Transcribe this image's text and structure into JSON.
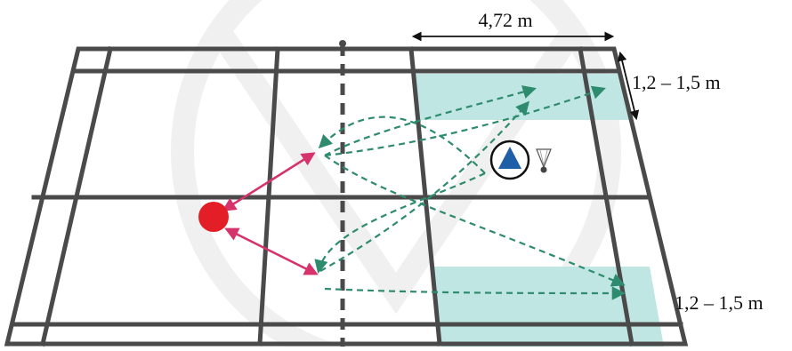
{
  "labels": {
    "zone_width": "4,72 m",
    "zone_depth_top": "1,2 – 1,5 m",
    "zone_depth_bottom": "1,2 – 1,5 m"
  },
  "colors": {
    "court_line": "#4a4a4a",
    "zone_fill": "#bfe6e3",
    "player_red": "#e41e26",
    "shot_arrow_pink": "#d6336c",
    "trajectory_green": "#2e8b6e",
    "player_blue": "#1f5fa8",
    "watermark": "#e2e2e2"
  },
  "icons": [
    "player-red-marker",
    "player-blue-triangle-marker",
    "shuttlecock-icon"
  ]
}
